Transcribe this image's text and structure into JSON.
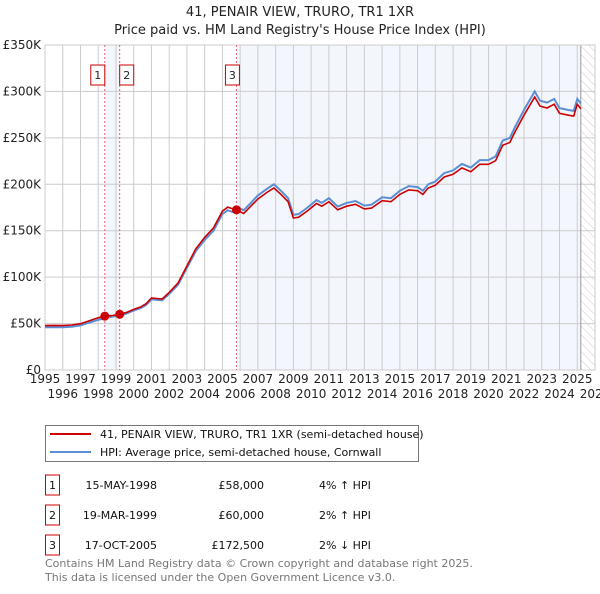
{
  "chart_data": {
    "type": "line",
    "title": "41, PENAIR VIEW, TRURO, TR1 1XR",
    "subtitle": "Price paid vs. HM Land Registry's House Price Index (HPI)",
    "xlim": [
      1995,
      2026
    ],
    "ylim": [
      0,
      350000
    ],
    "grid": true,
    "x_ticks": [
      "1995",
      "1996",
      "1997",
      "1998",
      "1999",
      "2000",
      "2001",
      "2002",
      "2003",
      "2004",
      "2005",
      "2006",
      "2007",
      "2008",
      "2009",
      "2010",
      "2011",
      "2012",
      "2013",
      "2014",
      "2015",
      "2016",
      "2017",
      "2018",
      "2019",
      "2020",
      "2021",
      "2022",
      "2023",
      "2024",
      "2025",
      "2026"
    ],
    "y_ticks": [
      {
        "value": 0,
        "label": "£0"
      },
      {
        "value": 50000,
        "label": "£50K"
      },
      {
        "value": 100000,
        "label": "£100K"
      },
      {
        "value": 150000,
        "label": "£150K"
      },
      {
        "value": 200000,
        "label": "£200K"
      },
      {
        "value": 250000,
        "label": "£250K"
      },
      {
        "value": 300000,
        "label": "£300K"
      },
      {
        "value": 350000,
        "label": "£350K"
      }
    ],
    "data_end": 2025.2,
    "colors": {
      "property": "#cc0000",
      "hpi": "#5b8fd4",
      "shade": "#f3f6fd",
      "grid": "#cccccc",
      "marker_line": "#e06070"
    },
    "shaded_ranges": [
      [
        1998.37,
        1999.21
      ],
      [
        2005.79,
        2025.2
      ]
    ],
    "x": [
      1995.0,
      1995.5,
      1996.0,
      1996.5,
      1997.0,
      1997.5,
      1998.0,
      1998.37,
      1998.8,
      1999.21,
      1999.6,
      2000.0,
      2000.4,
      2000.7,
      2001.0,
      2001.3,
      2001.6,
      2002.0,
      2002.5,
      2003.0,
      2003.5,
      2004.0,
      2004.5,
      2005.0,
      2005.3,
      2005.6,
      2005.79,
      2006.2,
      2006.6,
      2007.0,
      2007.5,
      2007.9,
      2008.3,
      2008.7,
      2009.0,
      2009.3,
      2009.8,
      2010.3,
      2010.6,
      2011.0,
      2011.5,
      2012.0,
      2012.5,
      2013.0,
      2013.4,
      2014.0,
      2014.5,
      2015.0,
      2015.5,
      2016.0,
      2016.3,
      2016.6,
      2017.0,
      2017.5,
      2018.0,
      2018.5,
      2019.0,
      2019.5,
      2020.0,
      2020.4,
      2020.8,
      2021.2,
      2021.5,
      2022.0,
      2022.6,
      2022.9,
      2023.3,
      2023.7,
      2024.0,
      2024.5,
      2024.8,
      2025.0,
      2025.2
    ],
    "series": [
      {
        "name": "41, PENAIR VIEW, TRURO, TR1 1XR (semi-detached house)",
        "values": [
          47800,
          48000,
          47800,
          48500,
          49900,
          53000,
          56200,
          58000,
          58700,
          60000,
          62000,
          65300,
          68000,
          71400,
          77500,
          77000,
          76500,
          83600,
          93800,
          112000,
          130500,
          142800,
          153000,
          171000,
          175400,
          173400,
          172500,
          168500,
          176400,
          184200,
          191100,
          196000,
          189100,
          181300,
          163700,
          164600,
          171500,
          179300,
          176400,
          181300,
          172500,
          176400,
          178400,
          173500,
          174400,
          182300,
          181300,
          189100,
          194000,
          193100,
          189100,
          196000,
          198900,
          207800,
          210700,
          217600,
          213600,
          221500,
          221500,
          225400,
          242100,
          245000,
          256800,
          274400,
          294000,
          284200,
          282200,
          286200,
          276400,
          274400,
          273400,
          286200,
          281300
        ]
      },
      {
        "name": "HPI: Average price, semi-detached house, Cornwall",
        "values": [
          46000,
          46200,
          46000,
          46600,
          48000,
          51000,
          54000,
          55800,
          57500,
          58800,
          60800,
          64000,
          66700,
          70000,
          76000,
          75500,
          75000,
          82000,
          92000,
          110000,
          128000,
          140000,
          150000,
          168000,
          172000,
          170000,
          176000,
          172000,
          180000,
          188000,
          195000,
          200000,
          193000,
          185000,
          167000,
          168000,
          175000,
          183000,
          180000,
          185000,
          176000,
          180000,
          182000,
          177000,
          178000,
          186000,
          185000,
          193000,
          198000,
          197000,
          193000,
          200000,
          203000,
          212000,
          215000,
          222000,
          218000,
          226000,
          226000,
          230000,
          247000,
          250000,
          262000,
          280000,
          300000,
          290000,
          288000,
          292000,
          282000,
          280000,
          279000,
          292000,
          287000
        ]
      }
    ],
    "sales": [
      {
        "num": "1",
        "x": 1998.37,
        "value": 58000
      },
      {
        "num": "2",
        "x": 1999.21,
        "value": 60000
      },
      {
        "num": "3",
        "x": 2005.79,
        "value": 172500
      }
    ],
    "legend": {
      "placement": "below",
      "property_label": "41, PENAIR VIEW, TRURO, TR1 1XR (semi-detached house)",
      "hpi_label": "HPI: Average price, semi-detached house, Cornwall"
    }
  },
  "table": [
    {
      "num": "1",
      "date": "15-MAY-1998",
      "price": "£58,000",
      "hpi": "4% ↑ HPI"
    },
    {
      "num": "2",
      "date": "19-MAR-1999",
      "price": "£60,000",
      "hpi": "2% ↑ HPI"
    },
    {
      "num": "3",
      "date": "17-OCT-2005",
      "price": "£172,500",
      "hpi": "2% ↓ HPI"
    }
  ],
  "footer": {
    "line1": "Contains HM Land Registry data © Crown copyright and database right 2025.",
    "line2": "This data is licensed under the Open Government Licence v3.0."
  }
}
